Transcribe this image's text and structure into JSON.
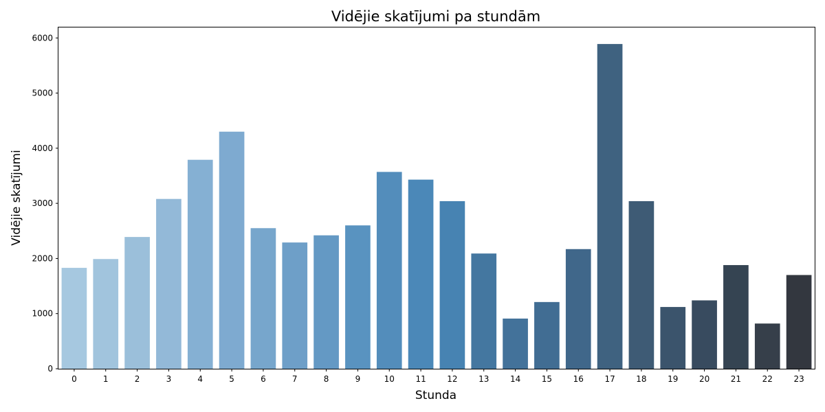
{
  "chart_data": {
    "type": "bar",
    "title": "Vidējie skatījumi pa stundām",
    "xlabel": "Stunda",
    "ylabel": "Vidējie skatījumi",
    "categories": [
      "0",
      "1",
      "2",
      "3",
      "4",
      "5",
      "6",
      "7",
      "8",
      "9",
      "10",
      "11",
      "12",
      "13",
      "14",
      "15",
      "16",
      "17",
      "18",
      "19",
      "20",
      "21",
      "22",
      "23"
    ],
    "values": [
      1830,
      1990,
      2390,
      3080,
      3790,
      4300,
      2550,
      2290,
      2420,
      2600,
      3570,
      3430,
      3040,
      2090,
      910,
      1210,
      2170,
      5890,
      3040,
      1120,
      1240,
      1880,
      820,
      1700
    ],
    "ylim": [
      0,
      6190
    ],
    "yticks": [
      0,
      1000,
      2000,
      3000,
      4000,
      5000,
      6000
    ],
    "ytick_labels": [
      "0",
      "1000",
      "2000",
      "3000",
      "4000",
      "5000",
      "6000"
    ],
    "grid": false,
    "colors": [
      "#a6c8e0",
      "#a1c4dd",
      "#9bbfda",
      "#93b9d8",
      "#85b0d3",
      "#7eaad0",
      "#77a6cc",
      "#6e9fc8",
      "#6499c4",
      "#5993c0",
      "#538dbb",
      "#4b88b8",
      "#4783b2",
      "#4477a0",
      "#43729a",
      "#416d93",
      "#40678a",
      "#3f6280",
      "#3e5b75",
      "#3b546c",
      "#384b5f",
      "#354452",
      "#363f4a",
      "#33373f"
    ]
  }
}
